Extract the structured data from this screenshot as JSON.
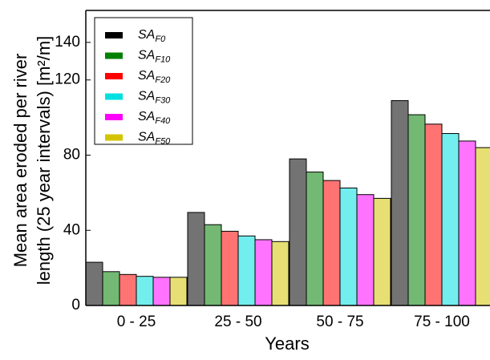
{
  "chart_data": {
    "type": "bar",
    "xlabel": "Years",
    "ylabel": [
      "Mean area eroded per river",
      "length (25 year intervals) [m²/m]"
    ],
    "categories": [
      "0 - 25",
      "25 - 50",
      "50 - 75",
      "75 - 100"
    ],
    "series": [
      {
        "name": "SAF0",
        "color": "#000000",
        "values": [
          23,
          49.5,
          78,
          109
        ]
      },
      {
        "name": "SAF10",
        "color": "#008000",
        "values": [
          18,
          43,
          71,
          101.5
        ]
      },
      {
        "name": "SAF20",
        "color": "#ff0000",
        "values": [
          16.5,
          39.5,
          66.5,
          96.5
        ]
      },
      {
        "name": "SAF30",
        "color": "#00e0e0",
        "values": [
          15.5,
          37,
          62.5,
          91.5
        ]
      },
      {
        "name": "SAF40",
        "color": "#ff00ff",
        "values": [
          15,
          35,
          59,
          87.5
        ]
      },
      {
        "name": "SAF50",
        "color": "#d4c400",
        "values": [
          15,
          34,
          57,
          84
        ]
      }
    ],
    "ylim": [
      0,
      157
    ],
    "yticks": [
      0,
      40,
      80,
      120,
      140
    ],
    "legend": "upper left"
  }
}
